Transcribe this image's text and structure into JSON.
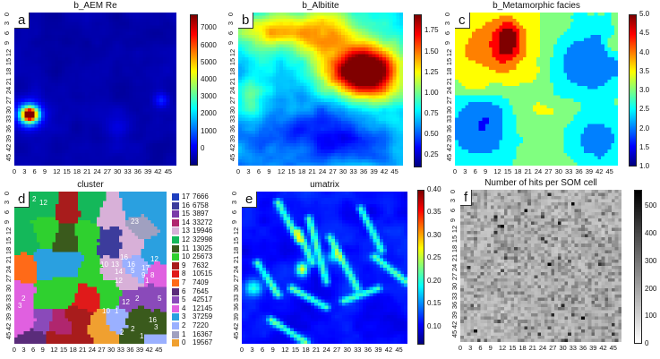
{
  "chart_data": [
    {
      "type": "heatmap",
      "panel_label": "a",
      "title": "b_AEM Re",
      "grid": [
        48,
        48
      ],
      "colormap": "jet",
      "clim": [
        -1000,
        7800
      ],
      "ticks": [
        0,
        1000,
        2000,
        3000,
        4000,
        5000,
        6000,
        7000
      ],
      "axis_ticks": [
        0,
        3,
        6,
        9,
        12,
        15,
        18,
        21,
        24,
        27,
        30,
        33,
        36,
        39,
        42,
        45
      ]
    },
    {
      "type": "heatmap",
      "panel_label": "b",
      "title": "b_Albitite",
      "grid": [
        48,
        48
      ],
      "colormap": "jet",
      "clim": [
        0.1,
        1.95
      ],
      "ticks": [
        0.25,
        0.5,
        0.75,
        1.0,
        1.25,
        1.5,
        1.75
      ],
      "tick_labels": [
        "0.25",
        "0.50",
        "0.75",
        "1.00",
        "1.25",
        "1.50",
        "1.75"
      ],
      "axis_ticks": [
        0,
        3,
        6,
        9,
        12,
        15,
        18,
        21,
        24,
        27,
        30,
        33,
        36,
        39,
        42,
        45
      ]
    },
    {
      "type": "heatmap",
      "panel_label": "c",
      "title": "b_Metamorphic facies",
      "grid": [
        48,
        48
      ],
      "colormap": "jet",
      "clim": [
        1.0,
        5.0
      ],
      "ticks": [
        1.0,
        1.5,
        2.0,
        2.5,
        3.0,
        3.5,
        4.0,
        4.5,
        5.0
      ],
      "tick_labels": [
        "1.0",
        "1.5",
        "2.0",
        "2.5",
        "3.0",
        "3.5",
        "4.0",
        "4.5",
        "5.0"
      ],
      "axis_ticks": [
        0,
        3,
        6,
        9,
        12,
        15,
        18,
        21,
        24,
        27,
        30,
        33,
        36,
        39,
        42,
        45
      ]
    },
    {
      "type": "heatmap",
      "panel_label": "d",
      "title": "cluster",
      "grid": [
        48,
        48
      ],
      "colormap": "categorical",
      "legend": [
        {
          "cluster": "17",
          "count": "7666",
          "color": "#1f3fbf"
        },
        {
          "cluster": "16",
          "count": "6758",
          "color": "#3c3c9c"
        },
        {
          "cluster": "15",
          "count": "3897",
          "color": "#7a3aa8"
        },
        {
          "cluster": "14",
          "count": "33272",
          "color": "#b0266e"
        },
        {
          "cluster": "13",
          "count": "19946",
          "color": "#d8b0d8"
        },
        {
          "cluster": "12",
          "count": "32998",
          "color": "#14b85a"
        },
        {
          "cluster": "11",
          "count": "13025",
          "color": "#3a5a1c"
        },
        {
          "cluster": "10",
          "count": "25673",
          "color": "#2fd02f"
        },
        {
          "cluster": "9",
          "count": "7632",
          "color": "#a81c1c"
        },
        {
          "cluster": "8",
          "count": "10515",
          "color": "#e01a1a"
        },
        {
          "cluster": "7",
          "count": "7409",
          "color": "#ff6a18"
        },
        {
          "cluster": "6",
          "count": "7645",
          "color": "#5a2c7a"
        },
        {
          "cluster": "5",
          "count": "42517",
          "color": "#8a4aba"
        },
        {
          "cluster": "4",
          "count": "12145",
          "color": "#e060e0"
        },
        {
          "cluster": "3",
          "count": "37259",
          "color": "#2aa0e0"
        },
        {
          "cluster": "2",
          "count": "7220",
          "color": "#9ab0ff"
        },
        {
          "cluster": "1",
          "count": "16367",
          "color": "#a0a0c0"
        },
        {
          "cluster": "0",
          "count": "19567",
          "color": "#f0a030"
        }
      ],
      "map_labels": [
        "3",
        "2",
        "12",
        "23",
        "16",
        "16",
        "5",
        "14",
        "12",
        "12",
        "10",
        "13",
        "17",
        "9",
        "8",
        "1",
        "2",
        "3",
        "12",
        "5",
        "1",
        "2",
        "16",
        "3",
        "10",
        "2",
        "2",
        "1"
      ],
      "axis_ticks": [
        0,
        3,
        6,
        9,
        12,
        15,
        18,
        21,
        24,
        27,
        30,
        33,
        36,
        39,
        42,
        45
      ]
    },
    {
      "type": "heatmap",
      "panel_label": "e",
      "title": "umatrix",
      "grid": [
        48,
        48
      ],
      "colormap": "jet",
      "clim": [
        0.06,
        0.4
      ],
      "ticks": [
        0.1,
        0.15,
        0.2,
        0.25,
        0.3,
        0.35,
        0.4
      ],
      "tick_labels": [
        "0.10",
        "0.15",
        "0.20",
        "0.25",
        "0.30",
        "0.35",
        "0.40"
      ],
      "axis_ticks": [
        0,
        3,
        6,
        9,
        12,
        15,
        18,
        21,
        24,
        27,
        30,
        33,
        36,
        39,
        42,
        45
      ]
    },
    {
      "type": "heatmap",
      "panel_label": "f",
      "title": "Number of hits per SOM cell",
      "grid": [
        48,
        48
      ],
      "colormap": "gray_r",
      "clim": [
        0,
        560
      ],
      "ticks": [
        0,
        100,
        200,
        300,
        400,
        500
      ],
      "axis_ticks": [
        0,
        3,
        6,
        9,
        12,
        15,
        18,
        21,
        24,
        27,
        30,
        33,
        36,
        39,
        42,
        45
      ]
    }
  ]
}
